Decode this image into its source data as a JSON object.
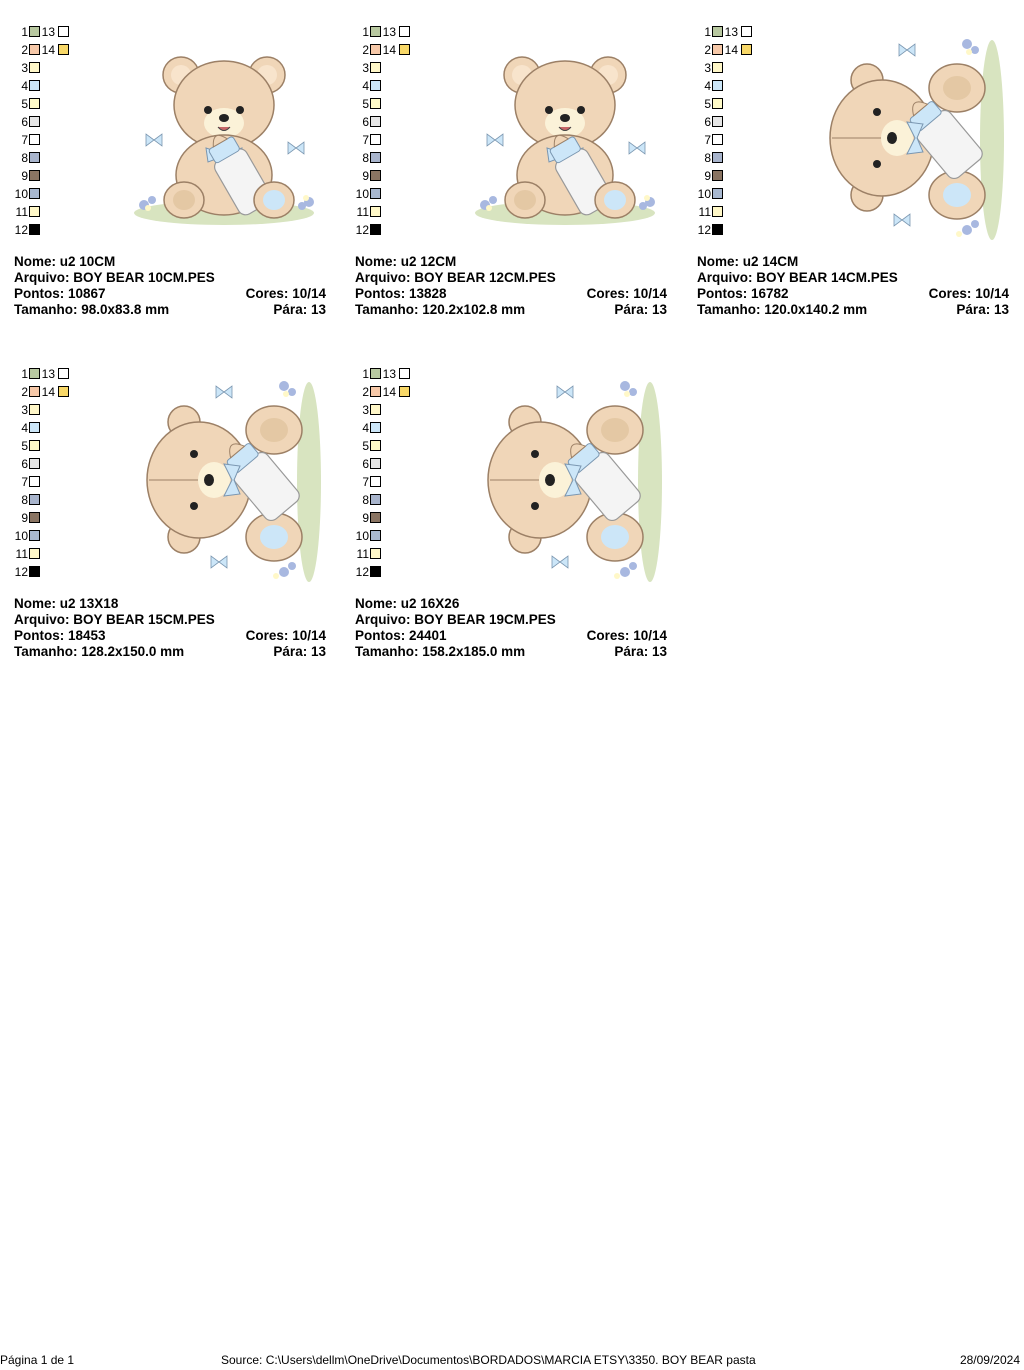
{
  "palette": {
    "left": [
      {
        "n": "1",
        "color": "#b8c8a0"
      },
      {
        "n": "2",
        "color": "#f6c8a8"
      },
      {
        "n": "3",
        "color": "#fff7c8"
      },
      {
        "n": "4",
        "color": "#cce6f8"
      },
      {
        "n": "5",
        "color": "#fffbc8"
      },
      {
        "n": "6",
        "color": "#e6e6e6"
      },
      {
        "n": "7",
        "color": "#ffffff"
      },
      {
        "n": "8",
        "color": "#a8b4cc"
      },
      {
        "n": "9",
        "color": "#8a7462"
      },
      {
        "n": "10",
        "color": "#a8b8d0"
      },
      {
        "n": "11",
        "color": "#fff8c8"
      },
      {
        "n": "12",
        "color": "#000000"
      }
    ],
    "right": [
      {
        "n": "13",
        "color": "#ffffff"
      },
      {
        "n": "14",
        "color": "#f8d868"
      }
    ]
  },
  "labels": {
    "nome": "Nome:",
    "arquivo": "Arquivo:",
    "pontos": "Pontos:",
    "cores": "Cores:",
    "tamanho": "Tamanho:",
    "para": "Pára:"
  },
  "designs": [
    {
      "nome": "u2 10CM",
      "arquivo": "BOY BEAR 10CM.PES",
      "pontos": "10867",
      "cores": "10/14",
      "tamanho": "98.0x83.8 mm",
      "para": "13",
      "pose": "sitting",
      "variant": "a"
    },
    {
      "nome": "u2 12CM",
      "arquivo": "BOY BEAR 12CM.PES",
      "pontos": "13828",
      "cores": "10/14",
      "tamanho": "120.2x102.8 mm",
      "para": "13",
      "pose": "sitting",
      "variant": "b"
    },
    {
      "nome": "u2 14CM",
      "arquivo": "BOY BEAR 14CM.PES",
      "pontos": "16782",
      "cores": "10/14",
      "tamanho": "120.0x140.2 mm",
      "para": "13",
      "pose": "lying",
      "variant": "a"
    },
    {
      "nome": "u2 13X18",
      "arquivo": "BOY BEAR 15CM.PES",
      "pontos": "18453",
      "cores": "10/14",
      "tamanho": "128.2x150.0 mm",
      "para": "13",
      "pose": "lying",
      "variant": "b"
    },
    {
      "nome": "u2 16X26",
      "arquivo": "BOY BEAR 19CM.PES",
      "pontos": "24401",
      "cores": "10/14",
      "tamanho": "158.2x185.0 mm",
      "para": "13",
      "pose": "lying",
      "variant": "b"
    }
  ],
  "footer": {
    "page": "Página 1 de 1",
    "source": "Source: C:\\Users\\dellm\\OneDrive\\Documentos\\BORDADOS\\MARCIA ETSY\\3350. BOY BEAR pasta",
    "date": "28/09/2024"
  }
}
